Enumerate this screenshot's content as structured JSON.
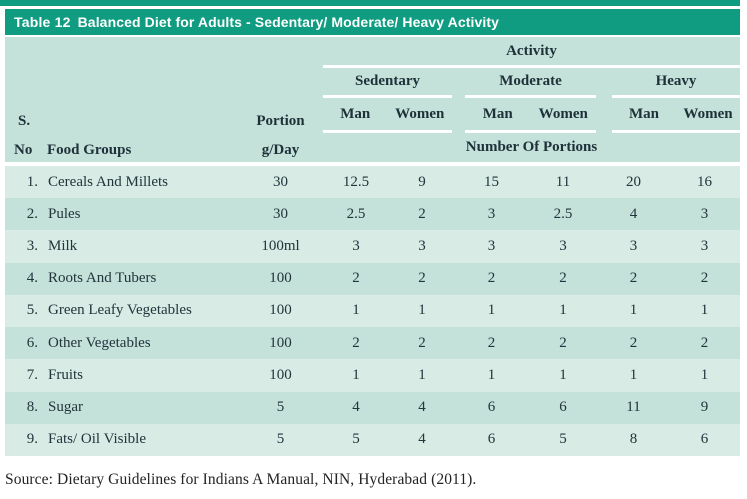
{
  "colors": {
    "teal": "#109c80",
    "header_bg": "#c4e1da",
    "row_light": "#d8ebe4",
    "row_dark": "#c4e1da",
    "title_text": "#ffffff",
    "body_ink": "#22343c"
  },
  "table": {
    "title_prefix": "Table 12",
    "title_text": "Balanced Diet for Adults - Sedentary/ Moderate/ Heavy Activity",
    "header": {
      "activity_label": "Activity",
      "group_labels": [
        "Sedentary",
        "Moderate",
        "Heavy"
      ],
      "man_label": "Man",
      "women_label": "Women",
      "sno_top": "S.",
      "sno_bottom": "No",
      "food_groups_label": "Food Groups",
      "portion_top": "Portion",
      "portion_bottom": "g/Day",
      "portions_span_label": "Number Of Portions"
    },
    "rows": [
      {
        "no": "1.",
        "food": "Cereals And Millets",
        "portion": "30",
        "values": [
          "12.5",
          "9",
          "15",
          "11",
          "20",
          "16"
        ]
      },
      {
        "no": "2.",
        "food": "Pules",
        "portion": "30",
        "values": [
          "2.5",
          "2",
          "3",
          "2.5",
          "4",
          "3"
        ]
      },
      {
        "no": "3.",
        "food": "Milk",
        "portion": "100ml",
        "values": [
          "3",
          "3",
          "3",
          "3",
          "3",
          "3"
        ]
      },
      {
        "no": "4.",
        "food": "Roots And Tubers",
        "portion": "100",
        "values": [
          "2",
          "2",
          "2",
          "2",
          "2",
          "2"
        ]
      },
      {
        "no": "5.",
        "food": "Green Leafy Vegetables",
        "portion": "100",
        "values": [
          "1",
          "1",
          "1",
          "1",
          "1",
          "1"
        ]
      },
      {
        "no": "6.",
        "food": "Other Vegetables",
        "portion": "100",
        "values": [
          "2",
          "2",
          "2",
          "2",
          "2",
          "2"
        ]
      },
      {
        "no": "7.",
        "food": "Fruits",
        "portion": "100",
        "values": [
          "1",
          "1",
          "1",
          "1",
          "1",
          "1"
        ]
      },
      {
        "no": "8.",
        "food": "Sugar",
        "portion": "5",
        "values": [
          "4",
          "4",
          "6",
          "6",
          "11",
          "9"
        ]
      },
      {
        "no": "9.",
        "food": "Fats/ Oil Visible",
        "portion": "5",
        "values": [
          "5",
          "4",
          "6",
          "5",
          "8",
          "6"
        ]
      }
    ]
  },
  "source_line": "Source: Dietary Guidelines for Indians A Manual, NIN, Hyderabad (2011).",
  "chart_data": {
    "type": "table",
    "title": "Table 12 Balanced Diet for Adults - Sedentary/ Moderate/ Heavy Activity",
    "columns": [
      "S. No",
      "Food Groups",
      "Portion g/Day",
      "Sedentary Man",
      "Sedentary Women",
      "Moderate Man",
      "Moderate Women",
      "Heavy Man",
      "Heavy Women"
    ],
    "values_unit": "Number Of Portions",
    "rows": [
      [
        "1.",
        "Cereals And Millets",
        "30",
        12.5,
        9,
        15,
        11,
        20,
        16
      ],
      [
        "2.",
        "Pules",
        "30",
        2.5,
        2,
        3,
        2.5,
        4,
        3
      ],
      [
        "3.",
        "Milk",
        "100ml",
        3,
        3,
        3,
        3,
        3,
        3
      ],
      [
        "4.",
        "Roots And Tubers",
        "100",
        2,
        2,
        2,
        2,
        2,
        2
      ],
      [
        "5.",
        "Green Leafy Vegetables",
        "100",
        1,
        1,
        1,
        1,
        1,
        1
      ],
      [
        "6.",
        "Other Vegetables",
        "100",
        2,
        2,
        2,
        2,
        2,
        2
      ],
      [
        "7.",
        "Fruits",
        "100",
        1,
        1,
        1,
        1,
        1,
        1
      ],
      [
        "8.",
        "Sugar",
        "5",
        4,
        4,
        6,
        6,
        11,
        9
      ],
      [
        "9.",
        "Fats/ Oil Visible",
        "5",
        5,
        4,
        6,
        5,
        8,
        6
      ]
    ],
    "source": "Source: Dietary Guidelines for Indians A Manual, NIN, Hyderabad (2011)."
  }
}
